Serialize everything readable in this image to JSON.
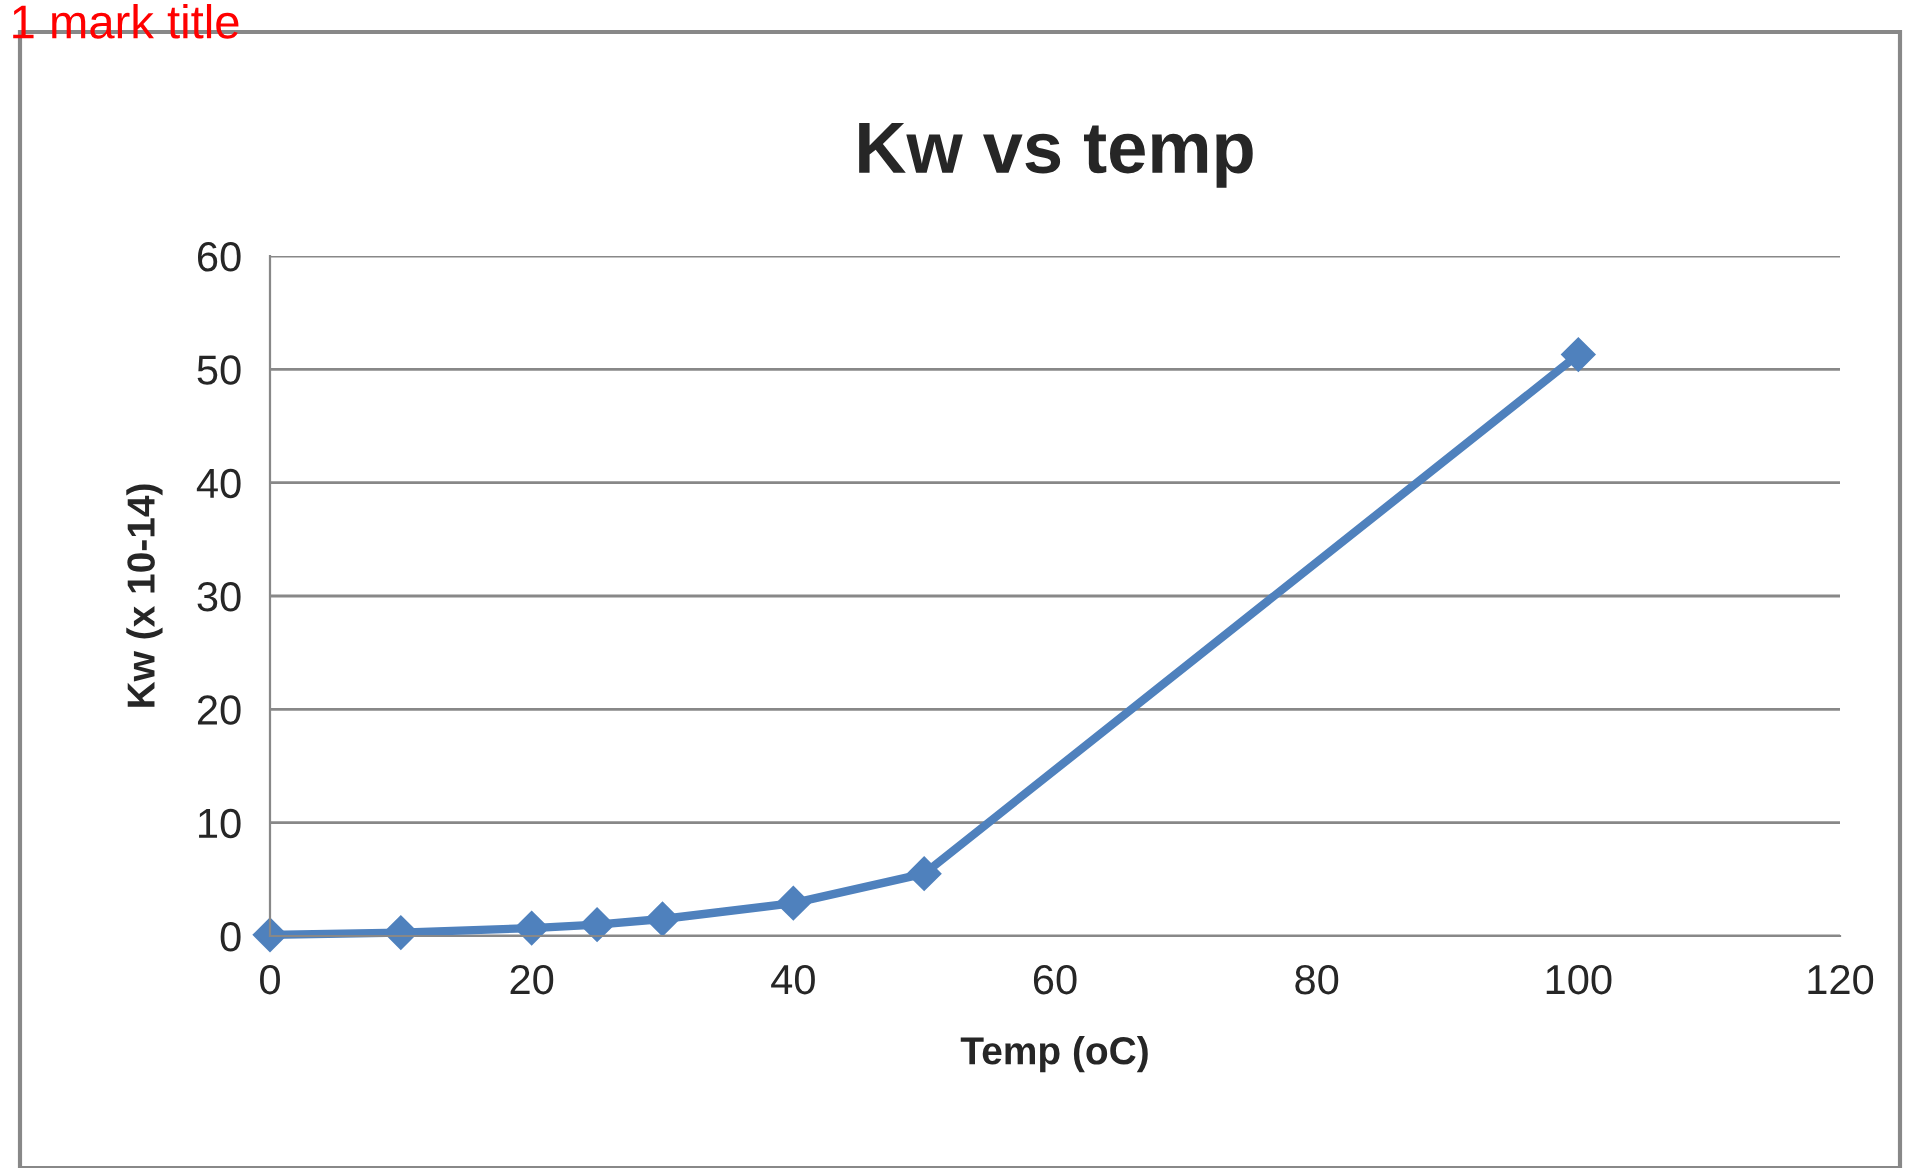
{
  "chart_data": {
    "type": "line",
    "title": "Kw vs temp",
    "xlabel": "Temp (oC)",
    "ylabel": "Kw (x 10-14)",
    "annotations": [
      "1 mark title"
    ],
    "x": [
      0,
      10,
      20,
      25,
      30,
      40,
      50,
      100
    ],
    "series": [
      {
        "color": "#4f81bd",
        "values": [
          0.1,
          0.3,
          0.7,
          1.0,
          1.5,
          2.9,
          5.5,
          51.3
        ]
      }
    ],
    "xlim": [
      0,
      120
    ],
    "xticks": [
      0,
      20,
      40,
      60,
      80,
      100,
      120
    ],
    "ylim": [
      0,
      60
    ],
    "yticks": [
      0,
      10,
      20,
      30,
      40,
      50,
      60
    ],
    "grid": "y",
    "marker": "diamond",
    "line_style": "solid",
    "legend": false
  }
}
